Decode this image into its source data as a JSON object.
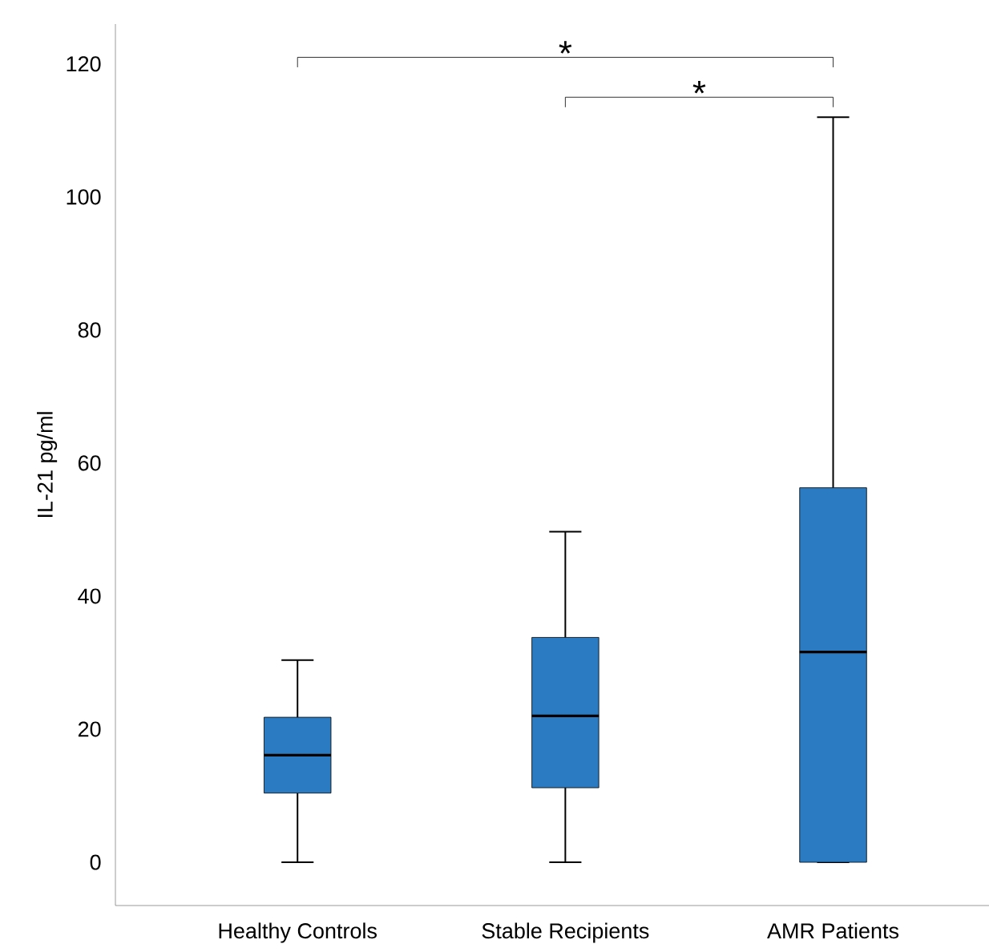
{
  "chart_data": {
    "type": "box",
    "ylabel": "IL-21 pg/ml",
    "categories": [
      "Healthy Controls",
      "Stable Recipients",
      "AMR Patients"
    ],
    "color": "#2a7bc1",
    "ylim": [
      -6.5,
      126
    ],
    "yticks": [
      0,
      20,
      40,
      60,
      80,
      100,
      120
    ],
    "boxes": [
      {
        "low": 0,
        "q1": 10.4,
        "median": 16.1,
        "q3": 21.8,
        "high": 30.4
      },
      {
        "low": 0,
        "q1": 11.2,
        "median": 22,
        "q3": 33.8,
        "high": 49.7
      },
      {
        "low": 0,
        "q1": 0,
        "median": 31.6,
        "q3": 56.3,
        "high": 112
      }
    ],
    "annotations": [
      "*",
      "*"
    ]
  }
}
